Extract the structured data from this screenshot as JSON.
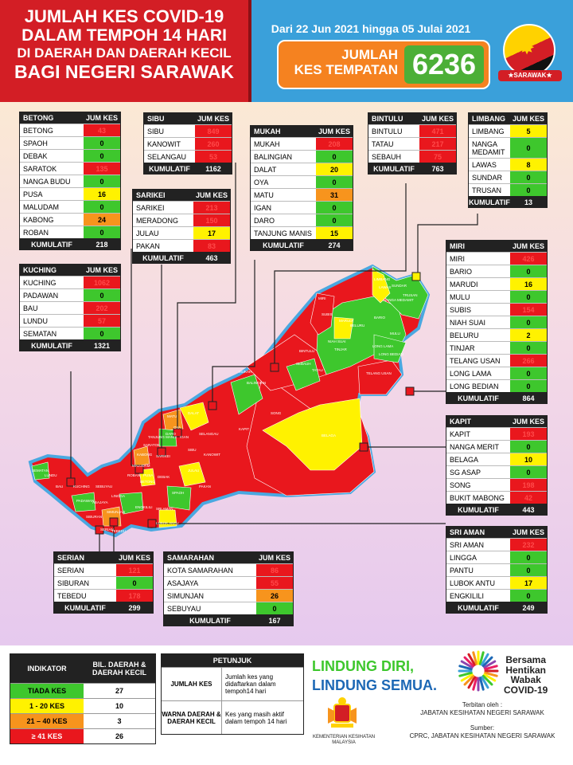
{
  "header": {
    "title_lines": [
      "JUMLAH KES COVID-19",
      "DALAM TEMPOH 14 HARI",
      "DI DAERAH DAN DAERAH KECIL",
      "BAGI NEGERI SARAWAK"
    ],
    "date_range": "Dari 22 Jun 2021 hingga 05 Julai 2021",
    "total_label_1": "JUMLAH",
    "total_label_2": "KES TEMPATAN",
    "total_value": "6236",
    "flag_label": "★SARAWAK★"
  },
  "colors": {
    "red": "#e9171d",
    "green": "#3ec72d",
    "yellow": "#fff200",
    "orange": "#f7941d",
    "dark": "#222222",
    "header_red": "#d31e25",
    "header_blue": "#3aa0da",
    "total_orange": "#f58220"
  },
  "column_header": "JUM KES",
  "total_label": "KUMULATIF",
  "divisions": {
    "betong": {
      "name": "BETONG",
      "total": "218",
      "rows": [
        {
          "name": "BETONG",
          "value": "43",
          "color": "red"
        },
        {
          "name": "SPAOH",
          "value": "0",
          "color": "green"
        },
        {
          "name": "DEBAK",
          "value": "0",
          "color": "green"
        },
        {
          "name": "SARATOK",
          "value": "135",
          "color": "red"
        },
        {
          "name": "NANGA BUDU",
          "value": "0",
          "color": "green"
        },
        {
          "name": "PUSA",
          "value": "16",
          "color": "yellow"
        },
        {
          "name": "MALUDAM",
          "value": "0",
          "color": "green"
        },
        {
          "name": "KABONG",
          "value": "24",
          "color": "orange"
        },
        {
          "name": "ROBAN",
          "value": "0",
          "color": "green"
        }
      ]
    },
    "kuching": {
      "name": "KUCHING",
      "total": "1321",
      "rows": [
        {
          "name": "KUCHING",
          "value": "1062",
          "color": "red"
        },
        {
          "name": "PADAWAN",
          "value": "0",
          "color": "green"
        },
        {
          "name": "BAU",
          "value": "202",
          "color": "red"
        },
        {
          "name": "LUNDU",
          "value": "57",
          "color": "red"
        },
        {
          "name": "SEMATAN",
          "value": "0",
          "color": "green"
        }
      ]
    },
    "sibu": {
      "name": "SIBU",
      "total": "1162",
      "rows": [
        {
          "name": "SIBU",
          "value": "849",
          "color": "red"
        },
        {
          "name": "KANOWIT",
          "value": "260",
          "color": "red"
        },
        {
          "name": "SELANGAU",
          "value": "53",
          "color": "red"
        }
      ]
    },
    "sarikei": {
      "name": "SARIKEI",
      "total": "463",
      "rows": [
        {
          "name": "SARIKEI",
          "value": "213",
          "color": "red"
        },
        {
          "name": "MERADONG",
          "value": "150",
          "color": "red"
        },
        {
          "name": "JULAU",
          "value": "17",
          "color": "yellow"
        },
        {
          "name": "PAKAN",
          "value": "83",
          "color": "red"
        }
      ]
    },
    "mukah": {
      "name": "MUKAH",
      "total": "274",
      "rows": [
        {
          "name": "MUKAH",
          "value": "208",
          "color": "red"
        },
        {
          "name": "BALINGIAN",
          "value": "0",
          "color": "green"
        },
        {
          "name": "DALAT",
          "value": "20",
          "color": "yellow"
        },
        {
          "name": "OYA",
          "value": "0",
          "color": "green"
        },
        {
          "name": "MATU",
          "value": "31",
          "color": "orange"
        },
        {
          "name": "IGAN",
          "value": "0",
          "color": "green"
        },
        {
          "name": "DARO",
          "value": "0",
          "color": "green"
        },
        {
          "name": "TANJUNG MANIS",
          "value": "15",
          "color": "yellow"
        }
      ]
    },
    "bintulu": {
      "name": "BINTULU",
      "total": "763",
      "rows": [
        {
          "name": "BINTULU",
          "value": "471",
          "color": "red"
        },
        {
          "name": "TATAU",
          "value": "217",
          "color": "red"
        },
        {
          "name": "SEBAUH",
          "value": "75",
          "color": "red"
        }
      ]
    },
    "limbang": {
      "name": "LIMBANG",
      "total": "13",
      "rows": [
        {
          "name": "LIMBANG",
          "value": "5",
          "color": "yellow"
        },
        {
          "name": "NANGA MEDAMIT",
          "value": "0",
          "color": "green"
        },
        {
          "name": "LAWAS",
          "value": "8",
          "color": "yellow"
        },
        {
          "name": "SUNDAR",
          "value": "0",
          "color": "green"
        },
        {
          "name": "TRUSAN",
          "value": "0",
          "color": "green"
        }
      ]
    },
    "miri": {
      "name": "MIRI",
      "total": "864",
      "rows": [
        {
          "name": "MIRI",
          "value": "426",
          "color": "red"
        },
        {
          "name": "BARIO",
          "value": "0",
          "color": "green"
        },
        {
          "name": "MARUDI",
          "value": "16",
          "color": "yellow"
        },
        {
          "name": "MULU",
          "value": "0",
          "color": "green"
        },
        {
          "name": "SUBIS",
          "value": "154",
          "color": "red"
        },
        {
          "name": "NIAH SUAI",
          "value": "0",
          "color": "green"
        },
        {
          "name": "BELURU",
          "value": "2",
          "color": "yellow"
        },
        {
          "name": "TINJAR",
          "value": "0",
          "color": "green"
        },
        {
          "name": "TELANG USAN",
          "value": "266",
          "color": "red"
        },
        {
          "name": "LONG LAMA",
          "value": "0",
          "color": "green"
        },
        {
          "name": "LONG BEDIAN",
          "value": "0",
          "color": "green"
        }
      ]
    },
    "kapit": {
      "name": "KAPIT",
      "total": "443",
      "rows": [
        {
          "name": "KAPIT",
          "value": "193",
          "color": "red"
        },
        {
          "name": "NANGA MERIT",
          "value": "0",
          "color": "green"
        },
        {
          "name": "BELAGA",
          "value": "10",
          "color": "yellow"
        },
        {
          "name": "SG ASAP",
          "value": "0",
          "color": "green"
        },
        {
          "name": "SONG",
          "value": "198",
          "color": "red"
        },
        {
          "name": "BUKIT MABONG",
          "value": "42",
          "color": "red"
        }
      ]
    },
    "sri_aman": {
      "name": "SRI AMAN",
      "total": "249",
      "rows": [
        {
          "name": "SRI AMAN",
          "value": "232",
          "color": "red"
        },
        {
          "name": "LINGGA",
          "value": "0",
          "color": "green"
        },
        {
          "name": "PANTU",
          "value": "0",
          "color": "green"
        },
        {
          "name": "LUBOK ANTU",
          "value": "17",
          "color": "yellow"
        },
        {
          "name": "ENGKILILI",
          "value": "0",
          "color": "green"
        }
      ]
    },
    "serian": {
      "name": "SERIAN",
      "total": "299",
      "rows": [
        {
          "name": "SERIAN",
          "value": "121",
          "color": "red"
        },
        {
          "name": "SIBURAN",
          "value": "0",
          "color": "green"
        },
        {
          "name": "TEBEDU",
          "value": "178",
          "color": "red"
        }
      ]
    },
    "samarahan": {
      "name": "SAMARAHAN",
      "total": "167",
      "rows": [
        {
          "name": "KOTA SAMARAHAN",
          "value": "86",
          "color": "red"
        },
        {
          "name": "ASAJAYA",
          "value": "55",
          "color": "red"
        },
        {
          "name": "SIMUNJAN",
          "value": "26",
          "color": "orange"
        },
        {
          "name": "SEBUYAU",
          "value": "0",
          "color": "green"
        }
      ]
    }
  },
  "map_labels": [
    "LIMBANG",
    "LAWAS",
    "MIRI",
    "MARUDI",
    "SUBIS",
    "BELURU",
    "TINJAR",
    "BARIO",
    "MULU",
    "LONG LAMA",
    "TELANG USAN",
    "LONG BEDIAN",
    "BINTULU",
    "SEBAUH",
    "TATAU",
    "BELAGA",
    "SONG",
    "KAPIT",
    "MUKAH",
    "BALINGIAN",
    "DALAT",
    "MATU",
    "DARO",
    "IGAN",
    "SIBU",
    "KANOWIT",
    "SELANGAU",
    "SARIKEI",
    "JULAU",
    "PAKAN",
    "BETONG",
    "SARATOK",
    "KABONG",
    "ROBAN",
    "DEBAK",
    "PUSA",
    "SPAOH",
    "SRI AMAN",
    "LUBOK ANTU",
    "ENGKILILI",
    "LINGGA",
    "SEBUYAU",
    "SIMUNJAN",
    "ASAJAYA",
    "SERIAN",
    "TEBEDU",
    "SIBURAN",
    "KUCHING",
    "PADAWAN",
    "BAU",
    "LUNDU",
    "SEMATAN",
    "OYA",
    "TANJUNG MANIS",
    "MALUDAM",
    "SUNDAR",
    "NANGA MEDAMIT",
    "TRUSAN",
    "NIAH SUAI"
  ],
  "indicator": {
    "col1": "INDIKATOR",
    "col2": "BIL. DAERAH & DAERAH KECIL",
    "rows": [
      {
        "label": "TIADA KES",
        "count": "27",
        "color": "green"
      },
      {
        "label": "1 - 20 KES",
        "count": "10",
        "color": "yellow"
      },
      {
        "label": "21 – 40 KES",
        "count": "3",
        "color": "orange"
      },
      {
        "label": "≥ 41 KES",
        "count": "26",
        "color": "red"
      }
    ]
  },
  "petunjuk": {
    "title": "PETUNJUK",
    "rows": [
      {
        "key": "JUMLAH KES",
        "desc": "Jumlah kes yang didaftarkan dalam tempoh14 hari"
      },
      {
        "key": "WARNA DAERAH & DAERAH KECIL",
        "desc": "Kes yang masih aktif dalam tempoh 14 hari"
      }
    ]
  },
  "slogan": {
    "line1": "LINDUNG DIRI,",
    "line2": "LINDUNG SEMUA."
  },
  "campaign": {
    "line1": "Bersama",
    "line2": "Hentikan",
    "line3": "Wabak",
    "line4": "COVID-19"
  },
  "ministry": {
    "line1": "KEMENTERIAN KESIHATAN",
    "line2": "MALAYSIA"
  },
  "credits": {
    "publisher_label": "Terbitan oleh :",
    "publisher": "JABATAN KESIHATAN NEGERI SARAWAK",
    "source_label": "Sumber:",
    "source": "CPRC, JABATAN KESIHATAN NEGERI SARAWAK"
  }
}
